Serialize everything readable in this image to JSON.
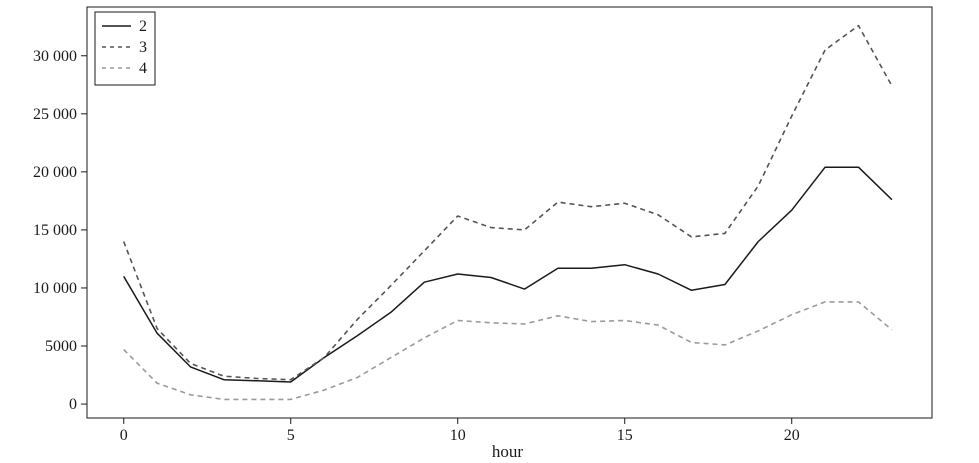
{
  "chart_data": {
    "type": "line",
    "title": "",
    "xlabel": "hour",
    "ylabel": "",
    "xlim": [
      -1.1,
      24.2
    ],
    "ylim": [
      -1200,
      34200
    ],
    "xticks": [
      0,
      5,
      10,
      15,
      20
    ],
    "xtick_labels": [
      "0",
      "5",
      "10",
      "15",
      "20"
    ],
    "yticks": [
      0,
      5000,
      10000,
      15000,
      20000,
      25000,
      30000
    ],
    "ytick_labels": [
      "0",
      "5000",
      "10 000",
      "15 000",
      "20 000",
      "25 000",
      "30 000"
    ],
    "grid": false,
    "legend_position": "top-left",
    "x": [
      0,
      1,
      2,
      3,
      4,
      5,
      6,
      7,
      8,
      9,
      10,
      11,
      12,
      13,
      14,
      15,
      16,
      17,
      18,
      19,
      20,
      21,
      22,
      23
    ],
    "series": [
      {
        "name": "2",
        "color": "#1a1a1a",
        "dash": "solid",
        "values": [
          11000,
          6100,
          3200,
          2100,
          2000,
          1900,
          4000,
          5900,
          7900,
          10500,
          11200,
          10900,
          9900,
          11700,
          11700,
          12000,
          11200,
          9800,
          10300,
          14000,
          16700,
          20400,
          20400,
          17600
        ]
      },
      {
        "name": "3",
        "color": "#555555",
        "dash": "dashed",
        "values": [
          14000,
          6500,
          3500,
          2400,
          2200,
          2100,
          4000,
          7300,
          10200,
          13200,
          16200,
          15200,
          15000,
          17400,
          17000,
          17300,
          16300,
          14400,
          14700,
          18800,
          24800,
          30500,
          32600,
          27400
        ]
      },
      {
        "name": "4",
        "color": "#9a9a9a",
        "dash": "dashed",
        "values": [
          4700,
          1800,
          800,
          400,
          400,
          400,
          1200,
          2300,
          4000,
          5700,
          7200,
          7000,
          6900,
          7600,
          7100,
          7200,
          6800,
          5300,
          5100,
          6300,
          7700,
          8800,
          8800,
          6400
        ]
      }
    ]
  }
}
